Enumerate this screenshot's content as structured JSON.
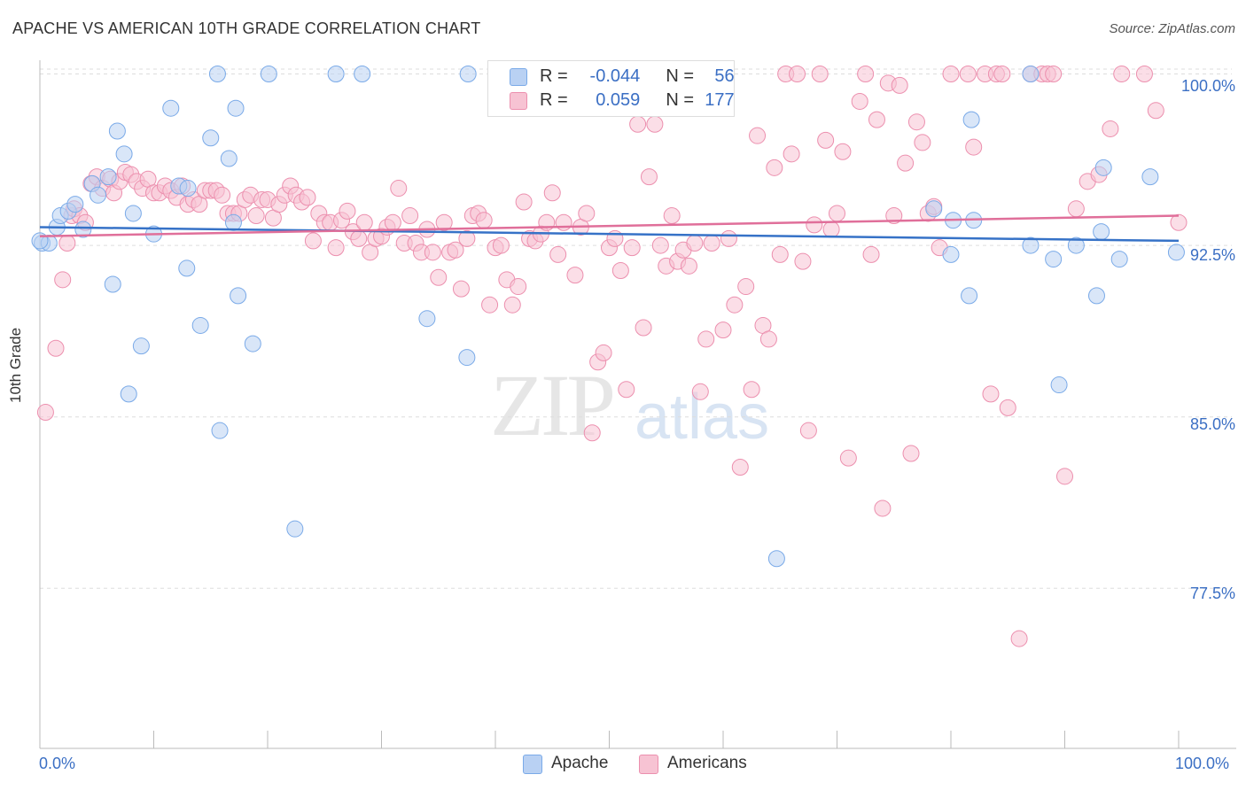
{
  "header": {
    "title": "APACHE VS AMERICAN 10TH GRADE CORRELATION CHART",
    "source": "Source: ZipAtlas.com"
  },
  "watermark": {
    "zip": "ZIP",
    "atlas": "atlas"
  },
  "legend": {
    "r_label": "R =",
    "n_label": "N =",
    "series": [
      {
        "name": "Apache",
        "r": "-0.044",
        "n": "56",
        "color": "#7aaae8",
        "fill": "#b9d1f3"
      },
      {
        "name": "Americans",
        "r": "0.059",
        "n": "177",
        "color": "#ec8fae",
        "fill": "#f7c3d3"
      }
    ]
  },
  "axes": {
    "ylabel": "10th Grade",
    "x_min_label": "0.0%",
    "x_max_label": "100.0%",
    "y_tick_labels": [
      "100.0%",
      "92.5%",
      "85.0%",
      "77.5%"
    ]
  },
  "colors": {
    "apache_line": "#3672c7",
    "americans_line": "#e06f9a",
    "grid": "#dddddd"
  },
  "chart_data": {
    "type": "scatter",
    "xlabel": "",
    "ylabel": "10th Grade",
    "xlim": [
      0,
      100
    ],
    "ylim": [
      70.5,
      100.6
    ],
    "y_ticks": [
      100.0,
      92.5,
      85.0,
      77.5
    ],
    "grid": true,
    "series": [
      {
        "name": "Apache",
        "trend": {
          "x": [
            0,
            100
          ],
          "y": [
            93.3,
            92.7
          ]
        },
        "points": [
          [
            0.2,
            92.6
          ],
          [
            0.8,
            92.6
          ],
          [
            1.5,
            93.3
          ],
          [
            1.8,
            93.8
          ],
          [
            2.5,
            94.0
          ],
          [
            3.1,
            94.3
          ],
          [
            3.8,
            93.2
          ],
          [
            4.6,
            95.2
          ],
          [
            5.1,
            94.7
          ],
          [
            6.0,
            95.5
          ],
          [
            6.4,
            90.8
          ],
          [
            6.8,
            97.5
          ],
          [
            7.4,
            96.5
          ],
          [
            7.8,
            86.0
          ],
          [
            8.2,
            93.9
          ],
          [
            8.9,
            88.1
          ],
          [
            10.0,
            93.0
          ],
          [
            11.5,
            98.5
          ],
          [
            12.2,
            95.1
          ],
          [
            12.9,
            91.5
          ],
          [
            14.1,
            89.0
          ],
          [
            15.0,
            97.2
          ],
          [
            15.6,
            100.0
          ],
          [
            15.8,
            84.4
          ],
          [
            16.6,
            96.3
          ],
          [
            17.2,
            98.5
          ],
          [
            17.4,
            90.3
          ],
          [
            18.7,
            88.2
          ],
          [
            20.1,
            100.0
          ],
          [
            22.4,
            80.1
          ],
          [
            26.0,
            100.0
          ],
          [
            28.3,
            100.0
          ],
          [
            34.0,
            89.3
          ],
          [
            37.5,
            87.6
          ],
          [
            37.6,
            100.0
          ],
          [
            64.7,
            78.8
          ],
          [
            78.5,
            94.1
          ],
          [
            80.0,
            92.1
          ],
          [
            80.2,
            93.6
          ],
          [
            81.6,
            90.3
          ],
          [
            82.0,
            93.6
          ],
          [
            81.8,
            98.0
          ],
          [
            87.0,
            100.0
          ],
          [
            87.0,
            92.5
          ],
          [
            89.0,
            91.9
          ],
          [
            89.5,
            86.4
          ],
          [
            91.0,
            92.5
          ],
          [
            92.8,
            90.3
          ],
          [
            93.2,
            93.1
          ],
          [
            93.4,
            95.9
          ],
          [
            94.8,
            91.9
          ],
          [
            97.5,
            95.5
          ],
          [
            99.8,
            92.2
          ],
          [
            0.0,
            92.7
          ],
          [
            13.0,
            95.0
          ],
          [
            17.0,
            93.5
          ]
        ]
      },
      {
        "name": "Americans",
        "trend": {
          "x": [
            0,
            100
          ],
          "y": [
            92.9,
            93.8
          ]
        },
        "points": [
          [
            0.5,
            85.2
          ],
          [
            1.4,
            88.0
          ],
          [
            2.0,
            91.0
          ],
          [
            2.4,
            92.6
          ],
          [
            2.8,
            93.8
          ],
          [
            3.0,
            94.1
          ],
          [
            3.5,
            93.8
          ],
          [
            4.0,
            93.5
          ],
          [
            4.5,
            95.2
          ],
          [
            5.0,
            95.5
          ],
          [
            5.5,
            95.0
          ],
          [
            6.2,
            95.4
          ],
          [
            6.5,
            94.8
          ],
          [
            7.0,
            95.3
          ],
          [
            7.5,
            95.7
          ],
          [
            8.0,
            95.6
          ],
          [
            8.5,
            95.3
          ],
          [
            9.0,
            95.0
          ],
          [
            9.5,
            95.4
          ],
          [
            10.0,
            94.8
          ],
          [
            10.5,
            94.8
          ],
          [
            11.0,
            95.1
          ],
          [
            11.5,
            94.9
          ],
          [
            12.0,
            94.6
          ],
          [
            12.5,
            95.1
          ],
          [
            13.0,
            94.3
          ],
          [
            13.5,
            94.5
          ],
          [
            14.0,
            94.3
          ],
          [
            14.5,
            94.9
          ],
          [
            15.0,
            94.9
          ],
          [
            15.5,
            94.9
          ],
          [
            16.0,
            94.7
          ],
          [
            16.5,
            93.9
          ],
          [
            17.0,
            93.9
          ],
          [
            17.5,
            93.9
          ],
          [
            18.0,
            94.5
          ],
          [
            18.5,
            94.7
          ],
          [
            19.0,
            93.8
          ],
          [
            19.5,
            94.5
          ],
          [
            20.0,
            94.5
          ],
          [
            20.5,
            93.7
          ],
          [
            21.0,
            94.3
          ],
          [
            21.5,
            94.7
          ],
          [
            22.0,
            95.1
          ],
          [
            22.5,
            94.7
          ],
          [
            23.0,
            94.4
          ],
          [
            23.5,
            94.6
          ],
          [
            24.0,
            92.7
          ],
          [
            24.5,
            93.9
          ],
          [
            25.0,
            93.5
          ],
          [
            25.5,
            93.5
          ],
          [
            26.0,
            92.4
          ],
          [
            26.5,
            93.6
          ],
          [
            27.0,
            94.0
          ],
          [
            27.5,
            93.1
          ],
          [
            28.0,
            92.8
          ],
          [
            28.5,
            93.5
          ],
          [
            29.0,
            92.2
          ],
          [
            29.5,
            92.8
          ],
          [
            30.0,
            92.9
          ],
          [
            30.5,
            93.3
          ],
          [
            31.0,
            93.5
          ],
          [
            31.5,
            95.0
          ],
          [
            32.0,
            92.6
          ],
          [
            32.5,
            93.8
          ],
          [
            33.0,
            92.6
          ],
          [
            33.5,
            92.2
          ],
          [
            34.0,
            93.2
          ],
          [
            34.5,
            92.2
          ],
          [
            35.0,
            91.1
          ],
          [
            35.5,
            93.5
          ],
          [
            36.0,
            92.2
          ],
          [
            36.5,
            92.3
          ],
          [
            37.0,
            90.6
          ],
          [
            37.5,
            92.8
          ],
          [
            38.0,
            93.8
          ],
          [
            38.5,
            93.9
          ],
          [
            39.0,
            93.6
          ],
          [
            39.5,
            89.9
          ],
          [
            40.0,
            92.4
          ],
          [
            40.5,
            92.5
          ],
          [
            41.0,
            91.0
          ],
          [
            41.5,
            89.9
          ],
          [
            42.0,
            90.7
          ],
          [
            42.5,
            94.4
          ],
          [
            43.0,
            92.8
          ],
          [
            43.5,
            92.7
          ],
          [
            44.0,
            93.0
          ],
          [
            44.5,
            93.5
          ],
          [
            45.0,
            94.8
          ],
          [
            45.5,
            92.1
          ],
          [
            46.0,
            93.5
          ],
          [
            47.0,
            91.2
          ],
          [
            47.5,
            93.3
          ],
          [
            48.0,
            93.9
          ],
          [
            48.5,
            84.3
          ],
          [
            49.0,
            87.4
          ],
          [
            49.5,
            87.8
          ],
          [
            50.0,
            92.4
          ],
          [
            50.5,
            92.8
          ],
          [
            51.0,
            91.4
          ],
          [
            51.5,
            86.2
          ],
          [
            52.0,
            92.4
          ],
          [
            52.5,
            97.8
          ],
          [
            53.0,
            88.9
          ],
          [
            53.5,
            95.5
          ],
          [
            54.0,
            97.8
          ],
          [
            54.5,
            92.5
          ],
          [
            55.0,
            91.6
          ],
          [
            55.5,
            93.8
          ],
          [
            56.0,
            91.8
          ],
          [
            56.5,
            92.3
          ],
          [
            57.0,
            91.6
          ],
          [
            57.5,
            92.6
          ],
          [
            58.0,
            86.1
          ],
          [
            58.5,
            88.4
          ],
          [
            59.0,
            92.6
          ],
          [
            59.5,
            100.0
          ],
          [
            60.0,
            88.8
          ],
          [
            60.5,
            92.8
          ],
          [
            61.0,
            89.9
          ],
          [
            61.5,
            82.8
          ],
          [
            62.0,
            90.7
          ],
          [
            62.5,
            86.2
          ],
          [
            63.0,
            97.3
          ],
          [
            63.5,
            89.0
          ],
          [
            64.0,
            88.4
          ],
          [
            64.5,
            95.9
          ],
          [
            65.0,
            92.1
          ],
          [
            65.5,
            100.0
          ],
          [
            66.0,
            96.5
          ],
          [
            66.5,
            100.0
          ],
          [
            67.0,
            91.8
          ],
          [
            67.5,
            84.4
          ],
          [
            68.0,
            93.4
          ],
          [
            68.5,
            100.0
          ],
          [
            69.0,
            97.1
          ],
          [
            69.5,
            93.2
          ],
          [
            70.0,
            93.9
          ],
          [
            70.5,
            96.6
          ],
          [
            71.0,
            83.2
          ],
          [
            72.0,
            98.8
          ],
          [
            72.5,
            100.0
          ],
          [
            73.0,
            92.1
          ],
          [
            73.5,
            98.0
          ],
          [
            74.0,
            81.0
          ],
          [
            74.5,
            99.6
          ],
          [
            75.0,
            93.8
          ],
          [
            75.5,
            99.5
          ],
          [
            76.0,
            96.1
          ],
          [
            76.5,
            83.4
          ],
          [
            77.0,
            97.9
          ],
          [
            77.5,
            97.0
          ],
          [
            78.0,
            93.9
          ],
          [
            78.5,
            94.2
          ],
          [
            79.0,
            92.4
          ],
          [
            80.0,
            100.0
          ],
          [
            81.5,
            100.0
          ],
          [
            82.0,
            96.8
          ],
          [
            83.0,
            100.0
          ],
          [
            83.5,
            86.0
          ],
          [
            84.0,
            100.0
          ],
          [
            84.5,
            100.0
          ],
          [
            85.0,
            85.4
          ],
          [
            86.0,
            75.3
          ],
          [
            87.0,
            100.0
          ],
          [
            88.0,
            100.0
          ],
          [
            88.5,
            100.0
          ],
          [
            89.0,
            100.0
          ],
          [
            90.0,
            82.4
          ],
          [
            91.0,
            94.1
          ],
          [
            92.0,
            95.3
          ],
          [
            93.0,
            95.6
          ],
          [
            94.0,
            97.6
          ],
          [
            95.0,
            100.0
          ],
          [
            97.0,
            100.0
          ],
          [
            98.0,
            98.4
          ],
          [
            100.0,
            93.5
          ]
        ]
      }
    ]
  }
}
